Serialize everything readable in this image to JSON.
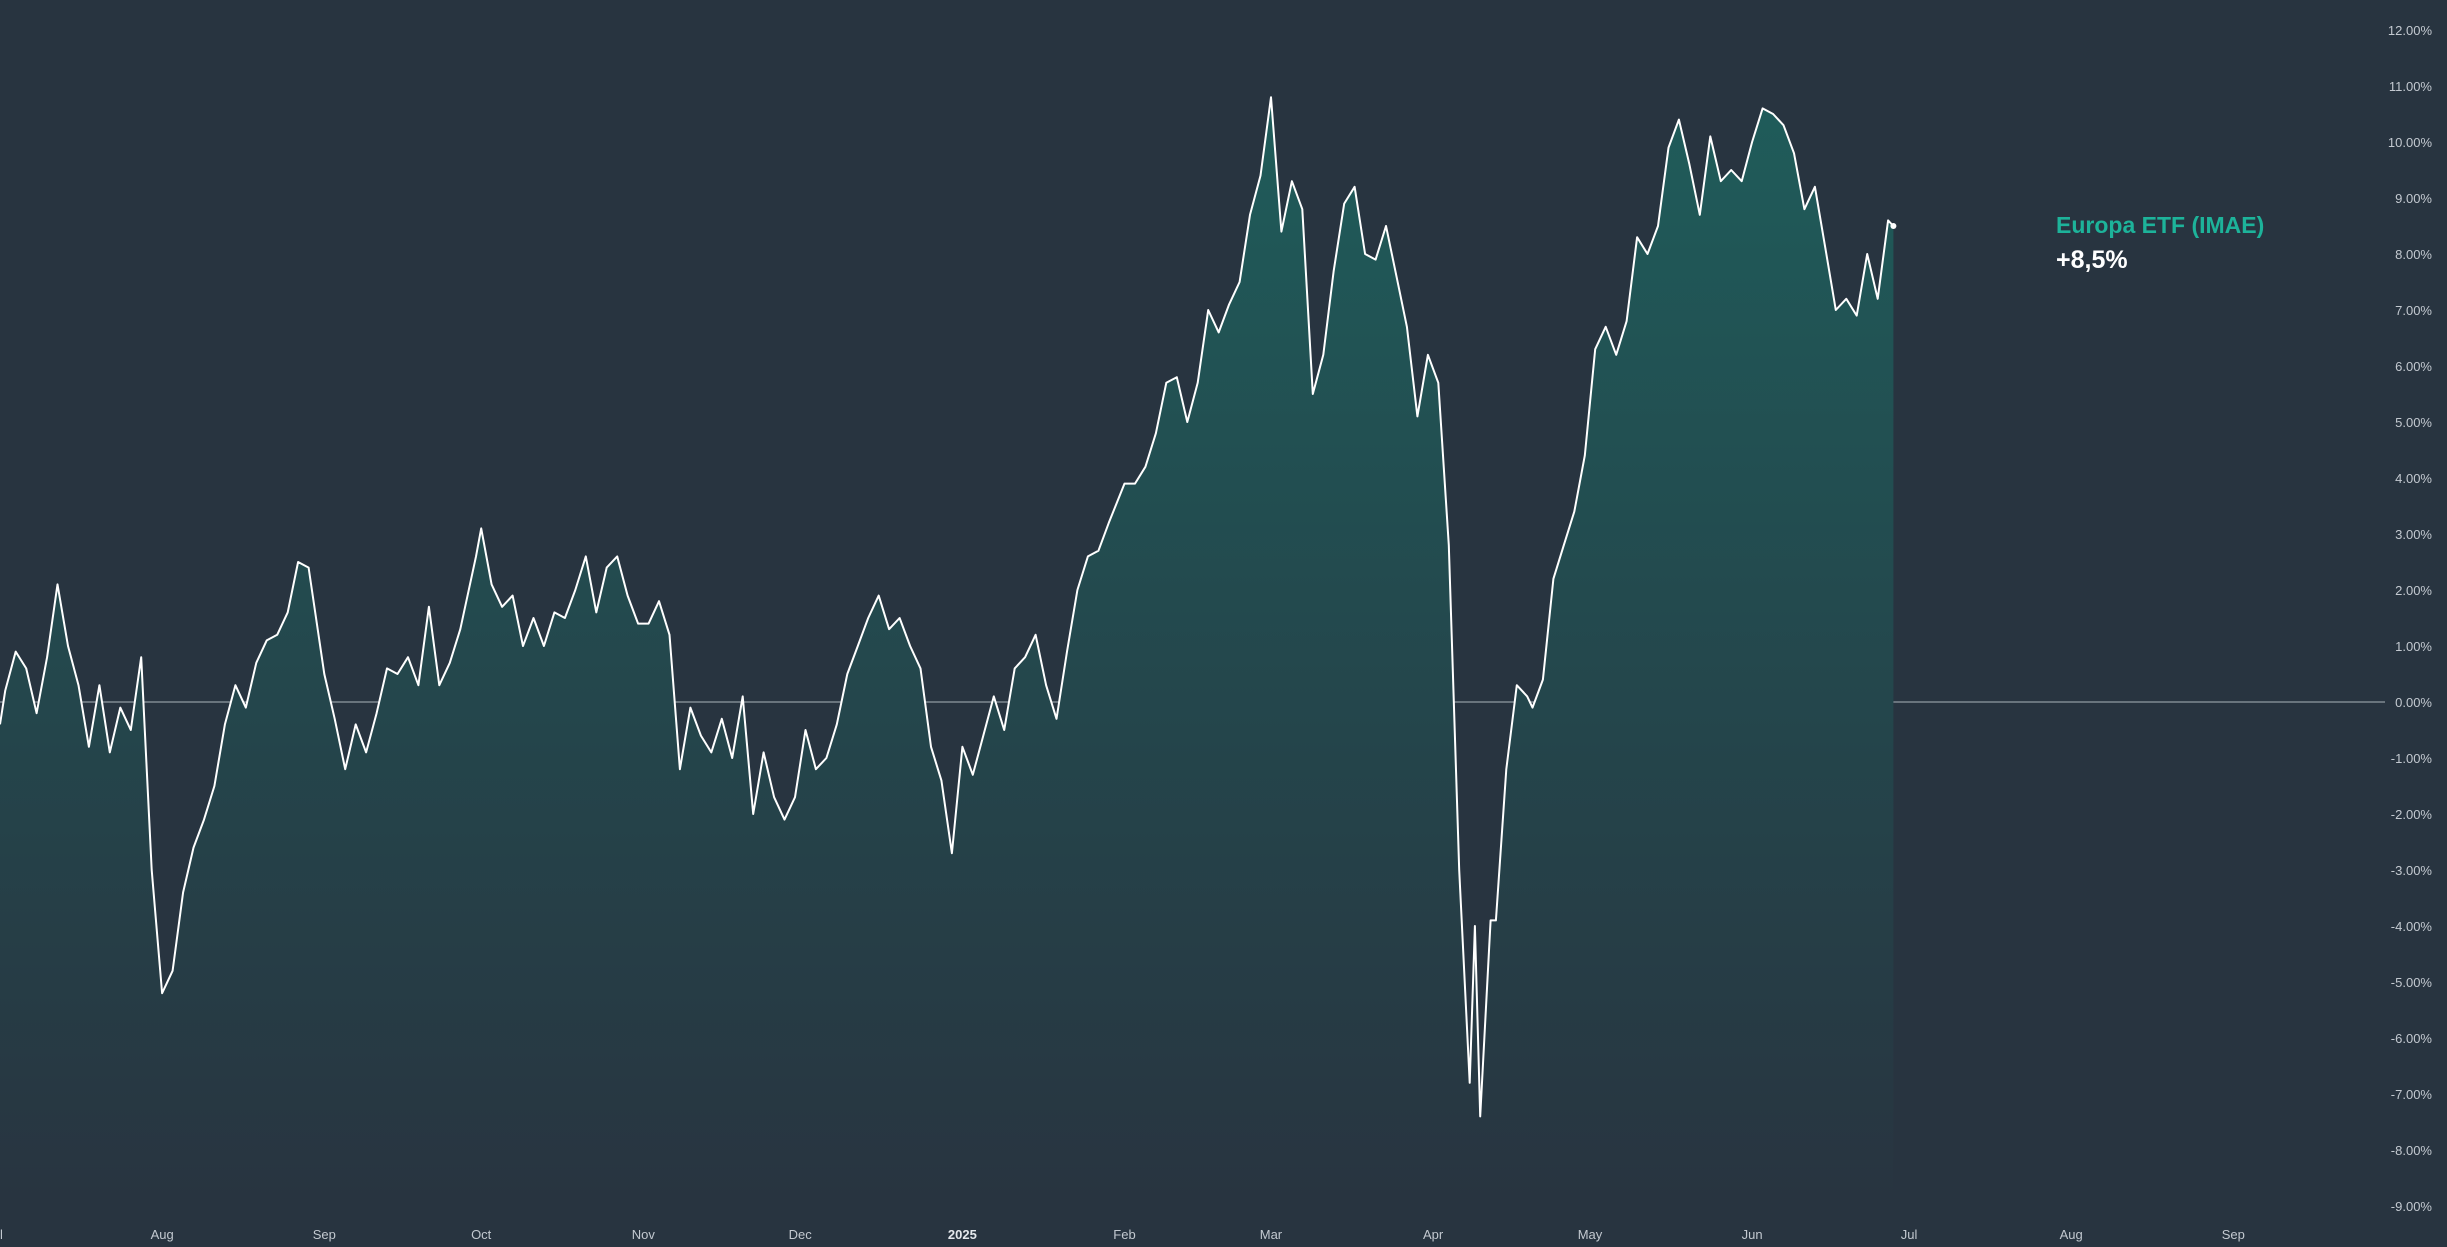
{
  "colors": {
    "background": "#283440",
    "line": "#ffffff",
    "area_top": "#1f5c5a",
    "area_bottom": "#283440",
    "zero_line": "#aab3ba",
    "accent": "#1db39a"
  },
  "legend": {
    "name": "Europa ETF (IMAE)",
    "value": "+8,5%"
  },
  "chart_data": {
    "type": "area",
    "title": "",
    "xlabel": "",
    "ylabel": "",
    "ylim": [
      -9,
      12
    ],
    "xlim": [
      "2024-07-01",
      "2025-09-30"
    ],
    "y_ticks": [
      "12.00%",
      "11.00%",
      "10.00%",
      "9.00%",
      "8.00%",
      "7.00%",
      "6.00%",
      "5.00%",
      "4.00%",
      "3.00%",
      "2.00%",
      "1.00%",
      "0.00%",
      "-1.00%",
      "-2.00%",
      "-3.00%",
      "-4.00%",
      "-5.00%",
      "-6.00%",
      "-7.00%",
      "-8.00%",
      "-9.00%"
    ],
    "x_ticks": [
      {
        "label": "l",
        "date": "2024-07-01"
      },
      {
        "label": "Aug",
        "date": "2024-08-01"
      },
      {
        "label": "Sep",
        "date": "2024-09-01"
      },
      {
        "label": "Oct",
        "date": "2024-10-01"
      },
      {
        "label": "Nov",
        "date": "2024-11-01"
      },
      {
        "label": "Dec",
        "date": "2024-12-01"
      },
      {
        "label": "2025",
        "date": "2025-01-01",
        "bold": true
      },
      {
        "label": "Feb",
        "date": "2025-02-01"
      },
      {
        "label": "Mar",
        "date": "2025-03-01"
      },
      {
        "label": "Apr",
        "date": "2025-04-01"
      },
      {
        "label": "May",
        "date": "2025-05-01"
      },
      {
        "label": "Jun",
        "date": "2025-06-01"
      },
      {
        "label": "Jul",
        "date": "2025-07-01"
      },
      {
        "label": "Aug",
        "date": "2025-08-01"
      },
      {
        "label": "Sep",
        "date": "2025-09-01"
      }
    ],
    "series": [
      {
        "name": "Europa ETF (IMAE)",
        "points": [
          [
            "2024-07-01",
            -0.4
          ],
          [
            "2024-07-02",
            0.2
          ],
          [
            "2024-07-04",
            0.9
          ],
          [
            "2024-07-06",
            0.6
          ],
          [
            "2024-07-08",
            -0.2
          ],
          [
            "2024-07-10",
            0.8
          ],
          [
            "2024-07-12",
            2.1
          ],
          [
            "2024-07-14",
            1.0
          ],
          [
            "2024-07-16",
            0.3
          ],
          [
            "2024-07-18",
            -0.8
          ],
          [
            "2024-07-20",
            0.3
          ],
          [
            "2024-07-22",
            -0.9
          ],
          [
            "2024-07-24",
            -0.1
          ],
          [
            "2024-07-26",
            -0.5
          ],
          [
            "2024-07-28",
            0.8
          ],
          [
            "2024-07-30",
            -3.0
          ],
          [
            "2024-08-01",
            -5.2
          ],
          [
            "2024-08-03",
            -4.8
          ],
          [
            "2024-08-05",
            -3.4
          ],
          [
            "2024-08-07",
            -2.6
          ],
          [
            "2024-08-09",
            -2.1
          ],
          [
            "2024-08-11",
            -1.5
          ],
          [
            "2024-08-13",
            -0.4
          ],
          [
            "2024-08-15",
            0.3
          ],
          [
            "2024-08-17",
            -0.1
          ],
          [
            "2024-08-19",
            0.7
          ],
          [
            "2024-08-21",
            1.1
          ],
          [
            "2024-08-23",
            1.2
          ],
          [
            "2024-08-25",
            1.6
          ],
          [
            "2024-08-27",
            2.5
          ],
          [
            "2024-08-29",
            2.4
          ],
          [
            "2024-09-01",
            0.5
          ],
          [
            "2024-09-03",
            -0.3
          ],
          [
            "2024-09-05",
            -1.2
          ],
          [
            "2024-09-07",
            -0.4
          ],
          [
            "2024-09-09",
            -0.9
          ],
          [
            "2024-09-11",
            -0.2
          ],
          [
            "2024-09-13",
            0.6
          ],
          [
            "2024-09-15",
            0.5
          ],
          [
            "2024-09-17",
            0.8
          ],
          [
            "2024-09-19",
            0.3
          ],
          [
            "2024-09-21",
            1.7
          ],
          [
            "2024-09-23",
            0.3
          ],
          [
            "2024-09-25",
            0.7
          ],
          [
            "2024-09-27",
            1.3
          ],
          [
            "2024-09-30",
            2.6
          ],
          [
            "2024-10-01",
            3.1
          ],
          [
            "2024-10-03",
            2.1
          ],
          [
            "2024-10-05",
            1.7
          ],
          [
            "2024-10-07",
            1.9
          ],
          [
            "2024-10-09",
            1.0
          ],
          [
            "2024-10-11",
            1.5
          ],
          [
            "2024-10-13",
            1.0
          ],
          [
            "2024-10-15",
            1.6
          ],
          [
            "2024-10-17",
            1.5
          ],
          [
            "2024-10-19",
            2.0
          ],
          [
            "2024-10-21",
            2.6
          ],
          [
            "2024-10-23",
            1.6
          ],
          [
            "2024-10-25",
            2.4
          ],
          [
            "2024-10-27",
            2.6
          ],
          [
            "2024-10-29",
            1.9
          ],
          [
            "2024-10-31",
            1.4
          ],
          [
            "2024-11-02",
            1.4
          ],
          [
            "2024-11-04",
            1.8
          ],
          [
            "2024-11-06",
            1.2
          ],
          [
            "2024-11-08",
            -1.2
          ],
          [
            "2024-11-10",
            -0.1
          ],
          [
            "2024-11-12",
            -0.6
          ],
          [
            "2024-11-14",
            -0.9
          ],
          [
            "2024-11-16",
            -0.3
          ],
          [
            "2024-11-18",
            -1.0
          ],
          [
            "2024-11-20",
            0.1
          ],
          [
            "2024-11-22",
            -2.0
          ],
          [
            "2024-11-24",
            -0.9
          ],
          [
            "2024-11-26",
            -1.7
          ],
          [
            "2024-11-28",
            -2.1
          ],
          [
            "2024-11-30",
            -1.7
          ],
          [
            "2024-12-02",
            -0.5
          ],
          [
            "2024-12-04",
            -1.2
          ],
          [
            "2024-12-06",
            -1.0
          ],
          [
            "2024-12-08",
            -0.4
          ],
          [
            "2024-12-10",
            0.5
          ],
          [
            "2024-12-12",
            1.0
          ],
          [
            "2024-12-14",
            1.5
          ],
          [
            "2024-12-16",
            1.9
          ],
          [
            "2024-12-18",
            1.3
          ],
          [
            "2024-12-20",
            1.5
          ],
          [
            "2024-12-22",
            1.0
          ],
          [
            "2024-12-24",
            0.6
          ],
          [
            "2024-12-26",
            -0.8
          ],
          [
            "2024-12-28",
            -1.4
          ],
          [
            "2024-12-30",
            -2.7
          ],
          [
            "2025-01-01",
            -0.8
          ],
          [
            "2025-01-03",
            -1.3
          ],
          [
            "2025-01-05",
            -0.6
          ],
          [
            "2025-01-07",
            0.1
          ],
          [
            "2025-01-09",
            -0.5
          ],
          [
            "2025-01-11",
            0.6
          ],
          [
            "2025-01-13",
            0.8
          ],
          [
            "2025-01-15",
            1.2
          ],
          [
            "2025-01-17",
            0.3
          ],
          [
            "2025-01-19",
            -0.3
          ],
          [
            "2025-01-21",
            0.9
          ],
          [
            "2025-01-23",
            2.0
          ],
          [
            "2025-01-25",
            2.6
          ],
          [
            "2025-01-27",
            2.7
          ],
          [
            "2025-01-29",
            3.2
          ],
          [
            "2025-02-01",
            3.9
          ],
          [
            "2025-02-03",
            3.9
          ],
          [
            "2025-02-05",
            4.2
          ],
          [
            "2025-02-07",
            4.8
          ],
          [
            "2025-02-09",
            5.7
          ],
          [
            "2025-02-11",
            5.8
          ],
          [
            "2025-02-13",
            5.0
          ],
          [
            "2025-02-15",
            5.7
          ],
          [
            "2025-02-17",
            7.0
          ],
          [
            "2025-02-19",
            6.6
          ],
          [
            "2025-02-21",
            7.1
          ],
          [
            "2025-02-23",
            7.5
          ],
          [
            "2025-02-25",
            8.7
          ],
          [
            "2025-02-27",
            9.4
          ],
          [
            "2025-03-01",
            10.8
          ],
          [
            "2025-03-03",
            8.4
          ],
          [
            "2025-03-05",
            9.3
          ],
          [
            "2025-03-07",
            8.8
          ],
          [
            "2025-03-09",
            5.5
          ],
          [
            "2025-03-11",
            6.2
          ],
          [
            "2025-03-13",
            7.7
          ],
          [
            "2025-03-15",
            8.9
          ],
          [
            "2025-03-17",
            9.2
          ],
          [
            "2025-03-19",
            8.0
          ],
          [
            "2025-03-21",
            7.9
          ],
          [
            "2025-03-23",
            8.5
          ],
          [
            "2025-03-25",
            7.6
          ],
          [
            "2025-03-27",
            6.7
          ],
          [
            "2025-03-29",
            5.1
          ],
          [
            "2025-03-31",
            6.2
          ],
          [
            "2025-04-02",
            5.7
          ],
          [
            "2025-04-04",
            2.8
          ],
          [
            "2025-04-06",
            -3.0
          ],
          [
            "2025-04-08",
            -6.8
          ],
          [
            "2025-04-09",
            -4.0
          ],
          [
            "2025-04-10",
            -7.4
          ],
          [
            "2025-04-12",
            -3.9
          ],
          [
            "2025-04-13",
            -3.9
          ],
          [
            "2025-04-15",
            -1.2
          ],
          [
            "2025-04-17",
            0.3
          ],
          [
            "2025-04-19",
            0.1
          ],
          [
            "2025-04-20",
            -0.1
          ],
          [
            "2025-04-22",
            0.4
          ],
          [
            "2025-04-24",
            2.2
          ],
          [
            "2025-04-26",
            2.8
          ],
          [
            "2025-04-28",
            3.4
          ],
          [
            "2025-04-30",
            4.4
          ],
          [
            "2025-05-02",
            6.3
          ],
          [
            "2025-05-04",
            6.7
          ],
          [
            "2025-05-06",
            6.2
          ],
          [
            "2025-05-08",
            6.8
          ],
          [
            "2025-05-10",
            8.3
          ],
          [
            "2025-05-12",
            8.0
          ],
          [
            "2025-05-14",
            8.5
          ],
          [
            "2025-05-16",
            9.9
          ],
          [
            "2025-05-18",
            10.4
          ],
          [
            "2025-05-20",
            9.6
          ],
          [
            "2025-05-22",
            8.7
          ],
          [
            "2025-05-24",
            10.1
          ],
          [
            "2025-05-26",
            9.3
          ],
          [
            "2025-05-28",
            9.5
          ],
          [
            "2025-05-30",
            9.3
          ],
          [
            "2025-06-01",
            10.0
          ],
          [
            "2025-06-03",
            10.6
          ],
          [
            "2025-06-05",
            10.5
          ],
          [
            "2025-06-07",
            10.3
          ],
          [
            "2025-06-09",
            9.8
          ],
          [
            "2025-06-11",
            8.8
          ],
          [
            "2025-06-13",
            9.2
          ],
          [
            "2025-06-15",
            8.1
          ],
          [
            "2025-06-17",
            7.0
          ],
          [
            "2025-06-19",
            7.2
          ],
          [
            "2025-06-21",
            6.9
          ],
          [
            "2025-06-23",
            8.0
          ],
          [
            "2025-06-25",
            7.2
          ],
          [
            "2025-06-27",
            8.6
          ],
          [
            "2025-06-28",
            8.5
          ]
        ]
      }
    ]
  }
}
